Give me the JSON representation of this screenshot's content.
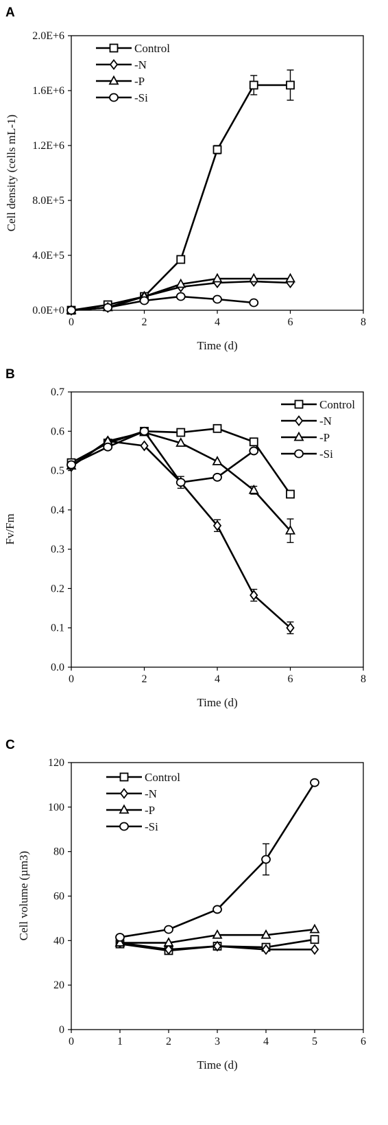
{
  "chart_data": [
    {
      "type": "line",
      "panel_label": "A",
      "xlabel": "Time (d)",
      "ylabel": "Cell density (cells mL-1)",
      "xlim": [
        0,
        8
      ],
      "ylim": [
        0,
        2000000
      ],
      "xticks": [
        "0",
        "2",
        "4",
        "6",
        "8"
      ],
      "yticks": [
        "0.0E+0",
        "4.0E+5",
        "8.0E+5",
        "1.2E+6",
        "1.6E+6",
        "2.0E+6"
      ],
      "grid": false,
      "legend_position": "top-left",
      "series": [
        {
          "name": "Control",
          "marker": "square",
          "x": [
            0,
            1,
            2,
            3,
            4,
            5,
            6
          ],
          "y": [
            0,
            40000,
            100000,
            370000,
            1170000,
            1640000,
            1640000
          ],
          "err": [
            0,
            0,
            0,
            0,
            30000,
            70000,
            110000
          ]
        },
        {
          "name": "-N",
          "marker": "diamond",
          "x": [
            0,
            1,
            2,
            3,
            4,
            5,
            6
          ],
          "y": [
            0,
            20000,
            100000,
            170000,
            200000,
            210000,
            200000
          ],
          "err": [
            0,
            0,
            0,
            0,
            0,
            0,
            0
          ]
        },
        {
          "name": "-P",
          "marker": "triangle",
          "x": [
            0,
            1,
            2,
            3,
            4,
            5,
            6
          ],
          "y": [
            0,
            20000,
            100000,
            190000,
            230000,
            230000,
            230000
          ],
          "err": [
            0,
            0,
            0,
            0,
            0,
            0,
            0
          ]
        },
        {
          "name": "-Si",
          "marker": "circle",
          "x": [
            0,
            1,
            2,
            3,
            4,
            5
          ],
          "y": [
            0,
            20000,
            70000,
            100000,
            80000,
            55000
          ],
          "err": [
            0,
            0,
            0,
            0,
            0,
            0
          ]
        }
      ]
    },
    {
      "type": "line",
      "panel_label": "B",
      "xlabel": "Time (d)",
      "ylabel": "Fv/Fm",
      "xlim": [
        0,
        8
      ],
      "ylim": [
        0,
        0.7
      ],
      "xticks": [
        "0",
        "2",
        "4",
        "6",
        "8"
      ],
      "yticks": [
        "0.0",
        "0.1",
        "0.2",
        "0.3",
        "0.4",
        "0.5",
        "0.6",
        "0.7"
      ],
      "grid": false,
      "legend_position": "top-right",
      "series": [
        {
          "name": "Control",
          "marker": "square",
          "x": [
            0,
            1,
            2,
            3,
            4,
            5,
            6
          ],
          "y": [
            0.52,
            0.57,
            0.6,
            0.597,
            0.607,
            0.573,
            0.44
          ],
          "err": [
            0,
            0,
            0,
            0,
            0,
            0,
            0
          ]
        },
        {
          "name": "-N",
          "marker": "diamond",
          "x": [
            0,
            1,
            2,
            3,
            4,
            5,
            6
          ],
          "y": [
            0.51,
            0.575,
            0.563,
            0.47,
            0.36,
            0.183,
            0.1
          ],
          "err": [
            0,
            0,
            0,
            0,
            0.015,
            0.015,
            0.015
          ]
        },
        {
          "name": "-P",
          "marker": "triangle",
          "x": [
            0,
            1,
            2,
            3,
            4,
            5,
            6
          ],
          "y": [
            0.512,
            0.575,
            0.597,
            0.57,
            0.523,
            0.45,
            0.347
          ],
          "err": [
            0,
            0,
            0,
            0,
            0,
            0.01,
            0.03
          ]
        },
        {
          "name": "-Si",
          "marker": "circle",
          "x": [
            0,
            1,
            2,
            3,
            4,
            5
          ],
          "y": [
            0.515,
            0.56,
            0.6,
            0.47,
            0.483,
            0.55
          ],
          "err": [
            0,
            0,
            0,
            0.015,
            0,
            0
          ]
        }
      ]
    },
    {
      "type": "line",
      "panel_label": "C",
      "xlabel": "Time (d)",
      "ylabel": "Cell volume (µm3)",
      "xlim": [
        0,
        6
      ],
      "ylim": [
        0,
        120
      ],
      "xticks": [
        "0",
        "1",
        "2",
        "3",
        "4",
        "5",
        "6"
      ],
      "yticks": [
        "0",
        "20",
        "40",
        "60",
        "80",
        "100",
        "120"
      ],
      "grid": false,
      "legend_position": "top-left",
      "series": [
        {
          "name": "Control",
          "marker": "square",
          "x": [
            1,
            2,
            3,
            4,
            5
          ],
          "y": [
            38.5,
            35.5,
            37.5,
            37,
            40.5
          ],
          "err": [
            0,
            0,
            0,
            0,
            0
          ]
        },
        {
          "name": "-N",
          "marker": "diamond",
          "x": [
            1,
            2,
            3,
            4,
            5
          ],
          "y": [
            39,
            36,
            37.5,
            36,
            36
          ],
          "err": [
            0,
            0,
            0,
            0,
            0
          ]
        },
        {
          "name": "-P",
          "marker": "triangle",
          "x": [
            1,
            2,
            3,
            4,
            5
          ],
          "y": [
            39,
            39,
            42.5,
            42.5,
            45
          ],
          "err": [
            0,
            0,
            0,
            0,
            0
          ]
        },
        {
          "name": "-Si",
          "marker": "circle",
          "x": [
            1,
            2,
            3,
            4,
            5
          ],
          "y": [
            41.5,
            45,
            54,
            76.5,
            111
          ],
          "err": [
            0,
            0,
            0,
            7,
            0
          ]
        }
      ]
    }
  ]
}
